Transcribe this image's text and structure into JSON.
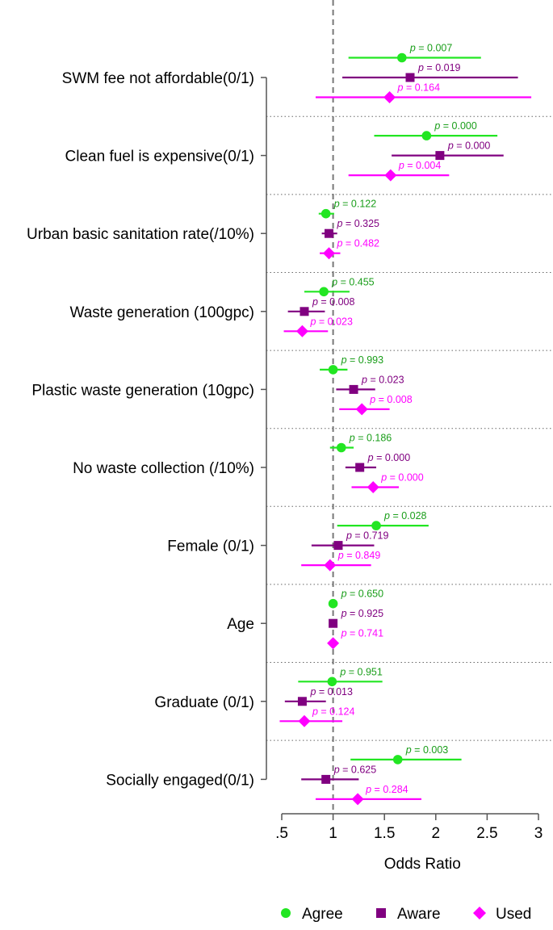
{
  "chart_data": {
    "type": "forest",
    "xlabel": "Odds Ratio",
    "xlim": [
      0.5,
      3.0
    ],
    "xticks": [
      {
        "value": 0.5,
        "label": ".5"
      },
      {
        "value": 1.0,
        "label": "1"
      },
      {
        "value": 1.5,
        "label": "1.5"
      },
      {
        "value": 2.0,
        "label": "2"
      },
      {
        "value": 2.5,
        "label": "2.5"
      },
      {
        "value": 3.0,
        "label": "3"
      }
    ],
    "reference_line": 1.0,
    "p_prefix": "p",
    "series": [
      {
        "name": "Agree",
        "color": "#22e622",
        "text_color": "#1a9e1a",
        "marker": "circle"
      },
      {
        "name": "Aware",
        "color": "#800080",
        "text_color": "#800080",
        "marker": "square"
      },
      {
        "name": "Used",
        "color": "#ff00ff",
        "text_color": "#ff00ff",
        "marker": "diamond"
      }
    ],
    "rows": [
      {
        "label": "SWM fee not affordable(0/1)",
        "estimates": [
          {
            "or": 1.67,
            "lo": 1.15,
            "hi": 2.44,
            "p": "0.007"
          },
          {
            "or": 1.75,
            "lo": 1.09,
            "hi": 2.8,
            "p": "0.019"
          },
          {
            "or": 1.55,
            "lo": 0.83,
            "hi": 2.93,
            "p": "0.164"
          }
        ]
      },
      {
        "label": "Clean fuel is expensive(0/1)",
        "estimates": [
          {
            "or": 1.91,
            "lo": 1.4,
            "hi": 2.6,
            "p": "0.000"
          },
          {
            "or": 2.04,
            "lo": 1.57,
            "hi": 2.66,
            "p": "0.000"
          },
          {
            "or": 1.56,
            "lo": 1.15,
            "hi": 2.13,
            "p": "0.004"
          }
        ]
      },
      {
        "label": "Urban basic sanitation rate(/10%)",
        "estimates": [
          {
            "or": 0.93,
            "lo": 0.86,
            "hi": 1.01,
            "p": "0.122"
          },
          {
            "or": 0.96,
            "lo": 0.89,
            "hi": 1.04,
            "p": "0.325"
          },
          {
            "or": 0.96,
            "lo": 0.87,
            "hi": 1.07,
            "p": "0.482"
          }
        ]
      },
      {
        "label": "Waste generation (100gpc)",
        "estimates": [
          {
            "or": 0.91,
            "lo": 0.72,
            "hi": 1.16,
            "p": "0.455"
          },
          {
            "or": 0.72,
            "lo": 0.56,
            "hi": 0.92,
            "p": "0.008"
          },
          {
            "or": 0.7,
            "lo": 0.52,
            "hi": 0.95,
            "p": "0.023"
          }
        ]
      },
      {
        "label": "Plastic waste generation (10gpc)",
        "estimates": [
          {
            "or": 1.0,
            "lo": 0.87,
            "hi": 1.14,
            "p": "0.993"
          },
          {
            "or": 1.2,
            "lo": 1.03,
            "hi": 1.41,
            "p": "0.023"
          },
          {
            "or": 1.28,
            "lo": 1.06,
            "hi": 1.55,
            "p": "0.008"
          }
        ]
      },
      {
        "label": "No waste collection (/10%)",
        "estimates": [
          {
            "or": 1.08,
            "lo": 0.97,
            "hi": 1.2,
            "p": "0.186"
          },
          {
            "or": 1.26,
            "lo": 1.12,
            "hi": 1.42,
            "p": "0.000"
          },
          {
            "or": 1.39,
            "lo": 1.18,
            "hi": 1.64,
            "p": "0.000"
          }
        ]
      },
      {
        "label": "Female (0/1)",
        "estimates": [
          {
            "or": 1.42,
            "lo": 1.04,
            "hi": 1.93,
            "p": "0.028"
          },
          {
            "or": 1.05,
            "lo": 0.79,
            "hi": 1.4,
            "p": "0.719"
          },
          {
            "or": 0.97,
            "lo": 0.69,
            "hi": 1.37,
            "p": "0.849"
          }
        ]
      },
      {
        "label": "Age",
        "estimates": [
          {
            "or": 1.0,
            "lo": 0.99,
            "hi": 1.01,
            "p": "0.650"
          },
          {
            "or": 1.0,
            "lo": 0.99,
            "hi": 1.01,
            "p": "0.925"
          },
          {
            "or": 1.0,
            "lo": 0.99,
            "hi": 1.01,
            "p": "0.741"
          }
        ]
      },
      {
        "label": "Graduate (0/1)",
        "estimates": [
          {
            "or": 0.99,
            "lo": 0.66,
            "hi": 1.48,
            "p": "0.951"
          },
          {
            "or": 0.7,
            "lo": 0.53,
            "hi": 0.93,
            "p": "0.013"
          },
          {
            "or": 0.72,
            "lo": 0.48,
            "hi": 1.09,
            "p": "0.124"
          }
        ]
      },
      {
        "label": "Socially engaged(0/1)",
        "estimates": [
          {
            "or": 1.63,
            "lo": 1.17,
            "hi": 2.25,
            "p": "0.003"
          },
          {
            "or": 0.93,
            "lo": 0.69,
            "hi": 1.25,
            "p": "0.625"
          },
          {
            "or": 1.24,
            "lo": 0.83,
            "hi": 1.86,
            "p": "0.284"
          }
        ]
      }
    ]
  }
}
